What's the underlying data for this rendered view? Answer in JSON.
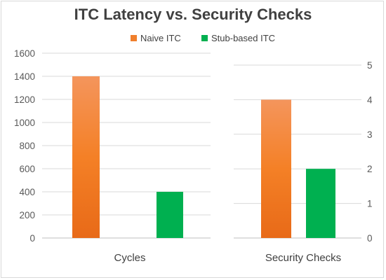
{
  "chart_data": [
    {
      "type": "bar",
      "title": "ITC Latency vs. Security Checks",
      "categories": [
        "Cycles"
      ],
      "series": [
        {
          "name": "Naive ITC",
          "values": [
            1400
          ],
          "color": "#f07f2c"
        },
        {
          "name": "Stub-based ITC",
          "values": [
            400
          ],
          "color": "#00b050"
        }
      ],
      "ylim": [
        0,
        1600
      ],
      "yticks": [
        "0",
        "200",
        "400",
        "600",
        "800",
        "1000",
        "1200",
        "1400",
        "1600"
      ],
      "axis_side": "left",
      "grid": true,
      "legend": "top"
    },
    {
      "type": "bar",
      "categories": [
        "Security Checks"
      ],
      "series": [
        {
          "name": "Naive ITC",
          "values": [
            4
          ],
          "color": "#f07f2c"
        },
        {
          "name": "Stub-based ITC",
          "values": [
            2
          ],
          "color": "#00b050"
        }
      ],
      "ylim": [
        0,
        5
      ],
      "yticks": [
        "0",
        "1",
        "2",
        "3",
        "4",
        "5"
      ],
      "axis_side": "right",
      "grid": true
    }
  ]
}
